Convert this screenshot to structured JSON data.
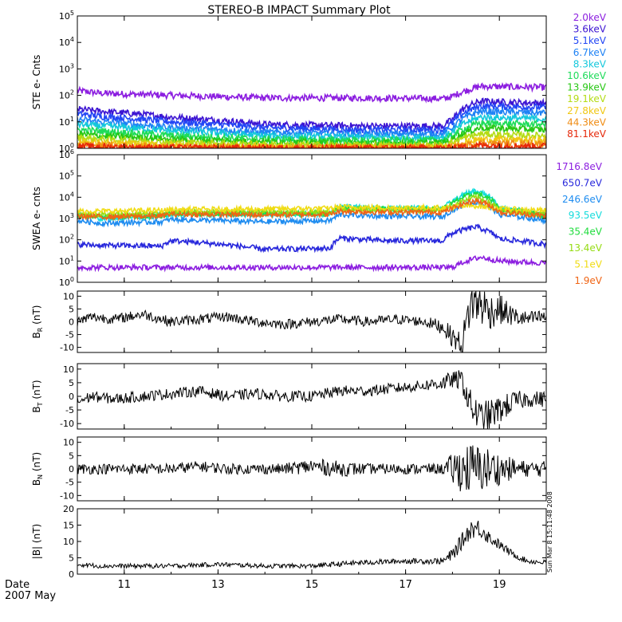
{
  "title": "STEREO-B IMPACT Summary Plot",
  "date_label": "Date",
  "date_value": "2007 May",
  "stamp": "Sun Mar  8 15:11:48 2008",
  "x_ticks": [
    "11",
    "13",
    "15",
    "17",
    "19"
  ],
  "chart_data": [
    {
      "type": "line",
      "ylabel": "STE e- Cnts",
      "yscale": "log",
      "ylim": [
        1,
        100000
      ],
      "x_range": [
        10.0,
        20.0
      ],
      "y_ticks": [
        "10^0",
        "10^1",
        "10^2",
        "10^3",
        "10^4",
        "10^5"
      ],
      "series": [
        {
          "name": "2.0keV",
          "color": "#8c1ee0",
          "x": [
            10.0,
            10.5,
            12.0,
            14.0,
            16.0,
            17.8,
            18.0,
            18.6,
            19.2,
            20.0
          ],
          "values": [
            150,
            120,
            100,
            80,
            80,
            75,
            90,
            220,
            210,
            200
          ]
        },
        {
          "name": "3.6keV",
          "color": "#3c14d2",
          "x": [
            10.0,
            10.5,
            12.0,
            14.0,
            16.0,
            17.8,
            18.0,
            18.6,
            19.2,
            20.0
          ],
          "values": [
            30,
            25,
            15,
            8,
            7,
            7,
            12,
            60,
            55,
            50
          ]
        },
        {
          "name": "5.1keV",
          "color": "#2346f5",
          "x": [
            10.0,
            10.5,
            12.0,
            14.0,
            16.0,
            17.8,
            18.0,
            18.6,
            19.2,
            20.0
          ],
          "values": [
            20,
            16,
            10,
            6,
            5,
            5,
            9,
            40,
            37,
            35
          ]
        },
        {
          "name": "6.7keV",
          "color": "#1e82f5",
          "x": [
            10.0,
            10.5,
            12.0,
            14.0,
            16.0,
            17.8,
            18.0,
            18.6,
            19.2,
            20.0
          ],
          "values": [
            12,
            10,
            6,
            4,
            3.5,
            3.5,
            6,
            25,
            23,
            22
          ]
        },
        {
          "name": "8.3keV",
          "color": "#14c8dc",
          "x": [
            10.0,
            10.5,
            12.0,
            14.0,
            16.0,
            17.8,
            18.0,
            18.6,
            19.2,
            20.0
          ],
          "values": [
            8,
            7,
            4.5,
            3,
            2.6,
            2.6,
            4,
            15,
            14,
            13
          ]
        },
        {
          "name": "10.6keV",
          "color": "#1edc5a",
          "x": [
            10.0,
            10.5,
            12.0,
            14.0,
            16.0,
            17.8,
            18.0,
            18.6,
            19.2,
            20.0
          ],
          "values": [
            5,
            4.5,
            3,
            2.2,
            2,
            2,
            3,
            9,
            8.5,
            8
          ]
        },
        {
          "name": "13.9keV",
          "color": "#28c814",
          "x": [
            10.0,
            10.5,
            12.0,
            14.0,
            16.0,
            17.8,
            18.0,
            18.6,
            19.2,
            20.0
          ],
          "values": [
            3.5,
            3,
            2.2,
            1.8,
            1.6,
            1.6,
            2.2,
            6,
            5.5,
            5
          ]
        },
        {
          "name": "19.1keV",
          "color": "#b4dc14",
          "x": [
            10.0,
            10.5,
            12.0,
            14.0,
            16.0,
            17.8,
            18.0,
            18.6,
            19.2,
            20.0
          ],
          "values": [
            2.5,
            2.2,
            1.7,
            1.4,
            1.3,
            1.3,
            1.7,
            3.5,
            3.2,
            3
          ]
        },
        {
          "name": "27.8keV",
          "color": "#f0c814",
          "x": [
            10.0,
            10.5,
            12.0,
            14.0,
            16.0,
            17.8,
            18.0,
            18.6,
            19.2,
            20.0
          ],
          "values": [
            1.8,
            1.6,
            1.3,
            1.15,
            1.1,
            1.1,
            1.3,
            2.2,
            2.1,
            2
          ]
        },
        {
          "name": "44.3keV",
          "color": "#f08c14",
          "x": [
            10.0,
            10.5,
            12.0,
            14.0,
            16.0,
            17.8,
            18.0,
            18.6,
            19.2,
            20.0
          ],
          "values": [
            1.4,
            1.3,
            1.1,
            1.05,
            1.03,
            1.03,
            1.1,
            1.6,
            1.5,
            1.5
          ]
        },
        {
          "name": "81.1keV",
          "color": "#e6280a",
          "x": [
            10.0,
            10.5,
            12.0,
            14.0,
            16.0,
            17.8,
            18.0,
            18.6,
            19.2,
            20.0
          ],
          "values": [
            1.2,
            1.15,
            1.05,
            1.02,
            1.01,
            1.01,
            1.05,
            1.3,
            1.25,
            1.2
          ]
        }
      ]
    },
    {
      "type": "line",
      "ylabel": "SWEA e- cnts",
      "yscale": "log",
      "ylim": [
        1,
        1000000
      ],
      "x_range": [
        10.0,
        20.0
      ],
      "y_ticks": [
        "10^0",
        "10^1",
        "10^2",
        "10^3",
        "10^4",
        "10^5",
        "10^6"
      ],
      "series": [
        {
          "name": "1716.8eV",
          "color": "#8c1ee0",
          "x": [
            10.0,
            12.0,
            14.0,
            16.0,
            18.0,
            18.6,
            19.0,
            20.0
          ],
          "values": [
            5,
            5,
            5,
            5,
            5,
            15,
            10,
            8
          ]
        },
        {
          "name": "650.7eV",
          "color": "#2828dc",
          "x": [
            10.0,
            10.5,
            11.8,
            12.0,
            14.0,
            15.4,
            15.6,
            16.5,
            17.8,
            18.0,
            18.5,
            19.0,
            20.0
          ],
          "values": [
            60,
            55,
            50,
            90,
            35,
            40,
            120,
            90,
            90,
            200,
            400,
            110,
            60
          ]
        },
        {
          "name": "246.6eV",
          "color": "#1e8cf0",
          "x": [
            10.0,
            10.5,
            11.8,
            12.0,
            14.0,
            15.4,
            15.6,
            16.5,
            17.8,
            18.0,
            18.5,
            19.0,
            20.0
          ],
          "values": [
            800,
            600,
            700,
            900,
            700,
            800,
            1500,
            1300,
            1200,
            2500,
            6000,
            1500,
            800
          ]
        },
        {
          "name": "93.5eV",
          "color": "#14dcdc",
          "x": [
            10.0,
            10.5,
            11.8,
            12.0,
            14.0,
            15.4,
            15.6,
            16.5,
            17.8,
            18.0,
            18.5,
            19.0,
            20.0
          ],
          "values": [
            1500,
            1000,
            1300,
            1600,
            1500,
            1600,
            3500,
            3000,
            3000,
            6000,
            20000,
            3000,
            1200
          ]
        },
        {
          "name": "35.4eV",
          "color": "#1edc3c",
          "x": [
            10.0,
            10.5,
            11.8,
            12.0,
            14.0,
            15.4,
            15.6,
            16.5,
            17.8,
            18.0,
            18.5,
            19.0,
            20.0
          ],
          "values": [
            1400,
            1200,
            1400,
            1800,
            1700,
            1800,
            3000,
            2800,
            2800,
            5000,
            15000,
            2800,
            1400
          ]
        },
        {
          "name": "13.4eV",
          "color": "#96dc14",
          "x": [
            10.0,
            10.5,
            11.8,
            12.0,
            14.0,
            15.4,
            15.6,
            16.5,
            17.8,
            18.0,
            18.5,
            19.0,
            20.0
          ],
          "values": [
            1600,
            1500,
            1700,
            2000,
            2000,
            2000,
            2800,
            2600,
            2600,
            4000,
            10000,
            2500,
            1600
          ]
        },
        {
          "name": "5.1eV",
          "color": "#f0dc14",
          "x": [
            10.0,
            10.5,
            11.8,
            12.0,
            14.0,
            15.4,
            15.6,
            16.5,
            17.8,
            18.0,
            18.5,
            19.0,
            20.0
          ],
          "values": [
            2200,
            2200,
            2400,
            2600,
            2800,
            3000,
            3500,
            3200,
            3200,
            3500,
            4000,
            2800,
            2400
          ]
        },
        {
          "name": "1.9eV",
          "color": "#f06414",
          "x": [
            10.0,
            10.5,
            11.8,
            12.0,
            14.0,
            15.4,
            15.6,
            16.5,
            17.8,
            18.0,
            18.5,
            19.0,
            20.0
          ],
          "values": [
            1300,
            1200,
            1300,
            1600,
            1500,
            1600,
            2200,
            2000,
            2000,
            3000,
            7000,
            2000,
            1300
          ]
        }
      ]
    },
    {
      "type": "line",
      "ylabel": "BR (nT)",
      "ylim": [
        -12,
        12
      ],
      "x_range": [
        10.0,
        20.0
      ],
      "y_ticks": [
        "-10",
        "-5",
        "0",
        "5",
        "10"
      ],
      "series": [
        {
          "x": [
            10.0,
            10.3,
            10.8,
            11.4,
            12.0,
            12.6,
            13.2,
            13.8,
            14.4,
            15.0,
            15.6,
            16.2,
            16.8,
            17.4,
            17.8,
            18.0,
            18.2,
            18.4,
            18.6,
            18.8,
            19.0,
            19.3,
            19.6,
            20.0
          ],
          "values": [
            0,
            2,
            1,
            3,
            0,
            1,
            2,
            0,
            -1,
            0,
            1,
            0,
            1,
            0,
            -2,
            -6,
            -9,
            8,
            7,
            4,
            5,
            2,
            1,
            2
          ],
          "noise": [
            2,
            2,
            2,
            2,
            2,
            2,
            2,
            2,
            2,
            2,
            2,
            2,
            2,
            2,
            3,
            4,
            5,
            9,
            9,
            7,
            6,
            4,
            3,
            3
          ]
        }
      ]
    },
    {
      "type": "line",
      "ylabel": "BT (nT)",
      "ylim": [
        -12,
        12
      ],
      "x_range": [
        10.0,
        20.0
      ],
      "y_ticks": [
        "-10",
        "-5",
        "0",
        "5",
        "10"
      ],
      "series": [
        {
          "x": [
            10.0,
            10.3,
            10.8,
            11.4,
            12.0,
            12.6,
            13.2,
            13.8,
            14.4,
            15.0,
            15.6,
            16.2,
            16.8,
            17.4,
            17.8,
            18.0,
            18.2,
            18.4,
            18.6,
            18.8,
            19.0,
            19.3,
            19.6,
            20.0
          ],
          "values": [
            -2,
            0,
            -1,
            0,
            1,
            2,
            0,
            1,
            0,
            0,
            2,
            2,
            3,
            4,
            5,
            6,
            6,
            -4,
            -8,
            -7,
            -5,
            -2,
            -1,
            -1
          ],
          "noise": [
            2,
            2,
            2,
            2,
            2,
            2,
            2,
            2,
            2,
            2,
            2,
            2,
            2,
            2,
            3,
            3,
            4,
            6,
            6,
            6,
            5,
            4,
            3,
            3
          ]
        }
      ]
    },
    {
      "type": "line",
      "ylabel": "BN (nT)",
      "ylim": [
        -12,
        12
      ],
      "x_range": [
        10.0,
        20.0
      ],
      "y_ticks": [
        "-10",
        "-5",
        "0",
        "5",
        "10"
      ],
      "series": [
        {
          "x": [
            10.0,
            10.3,
            10.8,
            11.4,
            12.0,
            12.6,
            13.2,
            13.8,
            14.4,
            15.0,
            15.6,
            16.2,
            16.8,
            17.4,
            17.8,
            18.0,
            18.2,
            18.4,
            18.6,
            18.8,
            19.0,
            19.3,
            19.6,
            20.0
          ],
          "values": [
            0,
            0,
            0,
            0,
            0,
            1,
            0,
            0,
            0,
            1,
            0,
            0,
            0,
            0,
            0,
            0,
            0,
            0,
            0,
            0,
            0,
            0,
            0,
            0
          ],
          "noise": [
            2,
            2,
            2,
            2,
            2,
            2,
            2,
            2,
            2,
            3,
            3,
            2,
            2,
            2,
            2,
            6,
            9,
            10,
            9,
            8,
            6,
            4,
            3,
            3
          ]
        }
      ]
    },
    {
      "type": "line",
      "ylabel": "|B| (nT)",
      "ylim": [
        0,
        20
      ],
      "x_range": [
        10.0,
        20.0
      ],
      "y_ticks": [
        "0",
        "5",
        "10",
        "15",
        "20"
      ],
      "series": [
        {
          "x": [
            10.0,
            10.5,
            11.0,
            12.0,
            13.0,
            14.0,
            15.0,
            15.5,
            16.0,
            17.0,
            17.8,
            18.0,
            18.2,
            18.4,
            18.6,
            18.8,
            19.0,
            19.3,
            19.6,
            20.0
          ],
          "values": [
            3,
            2.5,
            2.5,
            2.5,
            3,
            2.5,
            2.5,
            3,
            3.5,
            4,
            4,
            6,
            10,
            14,
            14,
            11,
            9,
            6,
            4,
            3.5
          ],
          "noise": [
            0.7,
            0.7,
            0.7,
            0.7,
            0.7,
            0.7,
            0.7,
            0.8,
            0.8,
            0.8,
            1,
            2,
            2.5,
            3,
            3,
            2,
            1.5,
            1,
            0.8,
            0.8
          ]
        }
      ]
    }
  ]
}
